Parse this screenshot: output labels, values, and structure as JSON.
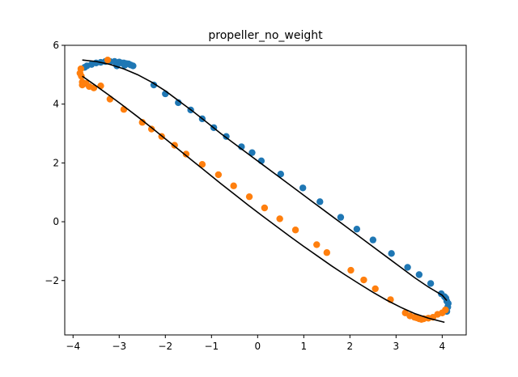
{
  "chart_data": {
    "type": "scatter",
    "title": "propeller_no_weight",
    "xlabel": "",
    "ylabel": "",
    "xlim": [
      -4.18,
      4.52
    ],
    "ylim": [
      -3.85,
      6.0
    ],
    "xticks": [
      -4,
      -3,
      -2,
      -1,
      0,
      1,
      2,
      3,
      4
    ],
    "yticks": [
      -2,
      0,
      2,
      4,
      6
    ],
    "xtick_labels": [
      "−4",
      "−3",
      "−2",
      "−1",
      "0",
      "1",
      "2",
      "3",
      "4"
    ],
    "ytick_labels": [
      "−2",
      "0",
      "2",
      "4",
      "6"
    ],
    "grid": false,
    "legend": "none",
    "colors": {
      "series_blue": "#1f77b4",
      "series_orange": "#ff7f0e",
      "fit": "#000000"
    },
    "series": [
      {
        "marker": "circle",
        "color": "#1f77b4",
        "points": [
          [
            -3.75,
            5.25
          ],
          [
            -3.7,
            5.3
          ],
          [
            -3.6,
            5.35
          ],
          [
            -3.5,
            5.4
          ],
          [
            -3.4,
            5.42
          ],
          [
            -3.3,
            5.45
          ],
          [
            -3.2,
            5.45
          ],
          [
            -3.1,
            5.45
          ],
          [
            -3.0,
            5.43
          ],
          [
            -2.95,
            5.4
          ],
          [
            -2.9,
            5.4
          ],
          [
            -2.85,
            5.38
          ],
          [
            -2.8,
            5.37
          ],
          [
            -2.75,
            5.33
          ],
          [
            -2.7,
            5.3
          ],
          [
            -3.05,
            5.3
          ],
          [
            -2.88,
            5.32
          ],
          [
            -2.25,
            4.65
          ],
          [
            -2.0,
            4.35
          ],
          [
            -1.72,
            4.05
          ],
          [
            -1.45,
            3.8
          ],
          [
            -1.2,
            3.5
          ],
          [
            -0.95,
            3.2
          ],
          [
            -0.68,
            2.9
          ],
          [
            -0.35,
            2.55
          ],
          [
            -0.12,
            2.35
          ],
          [
            0.08,
            2.07
          ],
          [
            0.5,
            1.62
          ],
          [
            0.98,
            1.15
          ],
          [
            1.35,
            0.68
          ],
          [
            1.8,
            0.15
          ],
          [
            2.15,
            -0.25
          ],
          [
            2.5,
            -0.62
          ],
          [
            2.9,
            -1.08
          ],
          [
            3.25,
            -1.55
          ],
          [
            3.5,
            -1.8
          ],
          [
            3.75,
            -2.1
          ],
          [
            3.98,
            -2.45
          ],
          [
            4.05,
            -2.55
          ],
          [
            4.1,
            -2.7
          ],
          [
            4.12,
            -2.9
          ],
          [
            4.1,
            -3.05
          ],
          [
            4.08,
            -2.6
          ],
          [
            4.13,
            -2.78
          ]
        ]
      },
      {
        "marker": "circle",
        "color": "#ff7f0e",
        "points": [
          [
            -3.25,
            5.5
          ],
          [
            -3.8,
            4.75
          ],
          [
            -3.82,
            4.95
          ],
          [
            -3.85,
            5.05
          ],
          [
            -3.83,
            5.2
          ],
          [
            -3.8,
            4.65
          ],
          [
            -3.72,
            4.7
          ],
          [
            -3.65,
            4.6
          ],
          [
            -3.55,
            4.55
          ],
          [
            -3.4,
            4.62
          ],
          [
            -3.2,
            4.17
          ],
          [
            -2.9,
            3.82
          ],
          [
            -2.5,
            3.38
          ],
          [
            -2.3,
            3.15
          ],
          [
            -2.08,
            2.9
          ],
          [
            -1.8,
            2.6
          ],
          [
            -1.55,
            2.3
          ],
          [
            -1.2,
            1.95
          ],
          [
            -0.85,
            1.6
          ],
          [
            -0.52,
            1.22
          ],
          [
            -0.18,
            0.85
          ],
          [
            0.15,
            0.47
          ],
          [
            0.48,
            0.1
          ],
          [
            0.82,
            -0.28
          ],
          [
            1.28,
            -0.78
          ],
          [
            1.5,
            -1.05
          ],
          [
            2.02,
            -1.65
          ],
          [
            2.3,
            -1.98
          ],
          [
            2.55,
            -2.28
          ],
          [
            2.88,
            -2.65
          ],
          [
            3.2,
            -3.1
          ],
          [
            3.3,
            -3.2
          ],
          [
            3.4,
            -3.25
          ],
          [
            3.5,
            -3.3
          ],
          [
            3.6,
            -3.3
          ],
          [
            3.7,
            -3.28
          ],
          [
            3.8,
            -3.25
          ],
          [
            3.9,
            -3.15
          ],
          [
            4.0,
            -3.1
          ],
          [
            4.07,
            -3.0
          ],
          [
            3.45,
            -3.27
          ],
          [
            3.55,
            -3.32
          ]
        ]
      }
    ],
    "fit_lines": [
      {
        "color": "#000000",
        "points": [
          [
            -3.8,
            5.5
          ],
          [
            -3.5,
            5.45
          ],
          [
            -3.2,
            5.35
          ],
          [
            -2.9,
            5.2
          ],
          [
            -2.6,
            5.0
          ],
          [
            -2.3,
            4.75
          ],
          [
            -2.0,
            4.45
          ],
          [
            -1.7,
            4.1
          ],
          [
            -1.4,
            3.75
          ],
          [
            -1.1,
            3.38
          ],
          [
            -0.8,
            3.0
          ],
          [
            -0.5,
            2.65
          ],
          [
            -0.2,
            2.3
          ],
          [
            0.1,
            1.95
          ],
          [
            0.4,
            1.6
          ],
          [
            0.7,
            1.25
          ],
          [
            1.0,
            0.9
          ],
          [
            1.3,
            0.55
          ],
          [
            1.6,
            0.2
          ],
          [
            1.9,
            -0.15
          ],
          [
            2.2,
            -0.5
          ],
          [
            2.5,
            -0.85
          ],
          [
            2.8,
            -1.2
          ],
          [
            3.1,
            -1.55
          ],
          [
            3.4,
            -1.9
          ],
          [
            3.7,
            -2.22
          ],
          [
            4.0,
            -2.5
          ],
          [
            4.1,
            -2.68
          ]
        ]
      },
      {
        "color": "#000000",
        "points": [
          [
            -3.8,
            4.95
          ],
          [
            -3.5,
            4.62
          ],
          [
            -3.2,
            4.28
          ],
          [
            -2.9,
            3.93
          ],
          [
            -2.6,
            3.57
          ],
          [
            -2.3,
            3.2
          ],
          [
            -2.0,
            2.82
          ],
          [
            -1.7,
            2.44
          ],
          [
            -1.4,
            2.06
          ],
          [
            -1.1,
            1.68
          ],
          [
            -0.8,
            1.3
          ],
          [
            -0.5,
            0.93
          ],
          [
            -0.2,
            0.56
          ],
          [
            0.1,
            0.2
          ],
          [
            0.4,
            -0.15
          ],
          [
            0.7,
            -0.5
          ],
          [
            1.0,
            -0.84
          ],
          [
            1.3,
            -1.17
          ],
          [
            1.6,
            -1.5
          ],
          [
            1.9,
            -1.81
          ],
          [
            2.2,
            -2.11
          ],
          [
            2.5,
            -2.4
          ],
          [
            2.8,
            -2.67
          ],
          [
            3.1,
            -2.91
          ],
          [
            3.4,
            -3.12
          ],
          [
            3.7,
            -3.28
          ],
          [
            4.0,
            -3.4
          ],
          [
            4.05,
            -3.42
          ]
        ]
      }
    ]
  }
}
